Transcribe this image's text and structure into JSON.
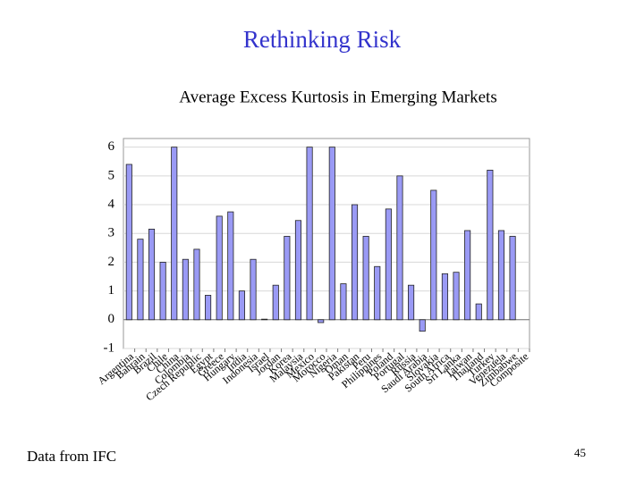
{
  "slide_title": "Rethinking Risk",
  "footer": "Data from IFC",
  "page_number": "45",
  "chart_data": {
    "type": "bar",
    "title": "Average Excess Kurtosis in Emerging Markets",
    "categories": [
      "Argentina",
      "Bahrain",
      "Brazil",
      "Chile",
      "China",
      "Colombia",
      "Czech Republic",
      "Egypt",
      "Greece",
      "Hungary",
      "India",
      "Indonesia",
      "Israel",
      "Jordan",
      "Korea",
      "Malaysia",
      "Mexico",
      "Morocco",
      "Nigeria",
      "Oman",
      "Pakistan",
      "Peru",
      "Philippines",
      "Poland",
      "Portugal",
      "Russia",
      "Saudi Arabia",
      "Slovakia",
      "South Africa",
      "Sri Lanka",
      "Taiwan",
      "Thailand",
      "Turkey",
      "Venezuela",
      "Zimbabwe",
      "Composite"
    ],
    "values": [
      5.4,
      2.8,
      3.15,
      2.0,
      6.0,
      2.1,
      2.45,
      0.85,
      3.6,
      3.75,
      1.0,
      2.1,
      0.02,
      1.2,
      2.9,
      3.45,
      6.0,
      -0.1,
      6.0,
      1.25,
      4.0,
      2.9,
      1.85,
      3.85,
      5.0,
      1.2,
      -0.4,
      4.5,
      1.6,
      1.65,
      3.1,
      0.55,
      5.2,
      3.1,
      2.9,
      null
    ],
    "color": "#9a9af5",
    "ylim": [
      -1,
      6.3
    ],
    "yticks": [
      -1,
      0,
      1,
      2,
      3,
      4,
      5,
      6
    ],
    "grid": true
  }
}
